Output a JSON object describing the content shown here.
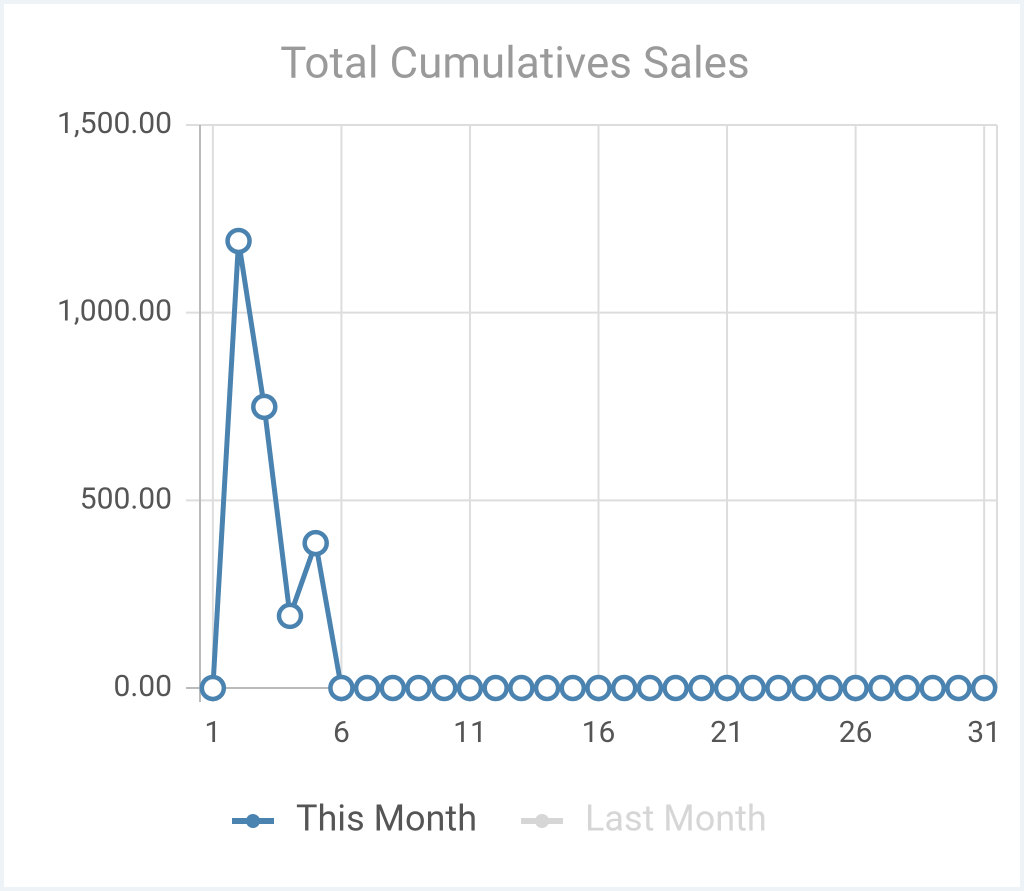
{
  "chart_data": {
    "type": "line",
    "title": "Total Cumulatives Sales",
    "x": [
      1,
      2,
      3,
      4,
      5,
      6,
      7,
      8,
      9,
      10,
      11,
      12,
      13,
      14,
      15,
      16,
      17,
      18,
      19,
      20,
      21,
      22,
      23,
      24,
      25,
      26,
      27,
      28,
      29,
      30,
      31
    ],
    "series": [
      {
        "name": "This Month",
        "color": "#4a82b0",
        "values": [
          0,
          1191,
          749,
          192,
          386,
          0,
          0,
          0,
          0,
          0,
          0,
          0,
          0,
          0,
          0,
          0,
          0,
          0,
          0,
          0,
          0,
          0,
          0,
          0,
          0,
          0,
          0,
          0,
          0,
          0,
          0
        ]
      },
      {
        "name": "Last Month",
        "color": "#d6d6d6",
        "hidden": true,
        "values": [
          null,
          null,
          null,
          null,
          null,
          null,
          null,
          null,
          null,
          null,
          null,
          null,
          null,
          null,
          null,
          null,
          null,
          null,
          null,
          null,
          null,
          null,
          null,
          null,
          null,
          null,
          null,
          null,
          null,
          null,
          null
        ]
      }
    ],
    "xlim": [
      0.5,
      31.5
    ],
    "xticks": [
      1,
      6,
      11,
      16,
      21,
      26,
      31
    ],
    "ylim": [
      0,
      1500
    ],
    "yticks": [
      {
        "value": 0,
        "label": "0.00"
      },
      {
        "value": 500,
        "label": "500.00"
      },
      {
        "value": 1000,
        "label": "1,000.00"
      },
      {
        "value": 1500,
        "label": "1,500.00"
      }
    ],
    "grid": true,
    "legend": "bottom"
  }
}
